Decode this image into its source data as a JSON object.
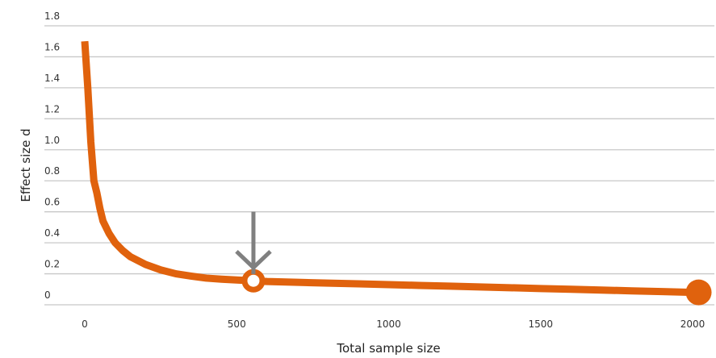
{
  "chart_data": {
    "type": "line",
    "xlabel": "Total sample size",
    "ylabel": "Effect size d",
    "xlim": [
      0,
      2000
    ],
    "ylim": [
      0,
      1.8
    ],
    "x_ticks": [
      0,
      500,
      1000,
      1500,
      2000
    ],
    "x_tick_labels": [
      "0",
      "500",
      "1000",
      "1500",
      "2000"
    ],
    "y_ticks": [
      0,
      0.2,
      0.4,
      0.6,
      0.8,
      1.0,
      1.2,
      1.4,
      1.6,
      1.8
    ],
    "y_tick_labels": [
      "0",
      "0.2",
      "0.4",
      "0.6",
      "0.8",
      "1.0",
      "1.2",
      "1.4",
      "1.6",
      "1.8"
    ],
    "grid": true,
    "series": [
      {
        "x": [
          0,
          10,
          20,
          30,
          40,
          50,
          60,
          80,
          100,
          125,
          150,
          200,
          250,
          300,
          350,
          400,
          450,
          500,
          550,
          600,
          700,
          800,
          900,
          1000,
          1100,
          1200,
          1300,
          1400,
          1500,
          1600,
          1700,
          1800,
          1900,
          2000
        ],
        "y": [
          1.7,
          1.4,
          1.05,
          0.8,
          0.72,
          0.62,
          0.54,
          0.46,
          0.4,
          0.35,
          0.31,
          0.26,
          0.225,
          0.2,
          0.185,
          0.172,
          0.165,
          0.16,
          0.155,
          0.15,
          0.145,
          0.14,
          0.135,
          0.13,
          0.125,
          0.12,
          0.115,
          0.11,
          0.105,
          0.1,
          0.095,
          0.09,
          0.085,
          0.08
        ],
        "color": "#e0620d"
      }
    ],
    "markers": [
      {
        "x": 555,
        "y": 0.155,
        "style": "hollow-circle"
      },
      {
        "x": 2020,
        "y": 0.08,
        "style": "filled-circle"
      }
    ],
    "annotations": [
      {
        "type": "arrow",
        "x": 555,
        "y_from": 0.6,
        "y_to": 0.24,
        "color": "#808080"
      }
    ],
    "colors": {
      "series": "#e0620d",
      "arrow": "#808080",
      "grid": "#c8c8c8"
    }
  }
}
